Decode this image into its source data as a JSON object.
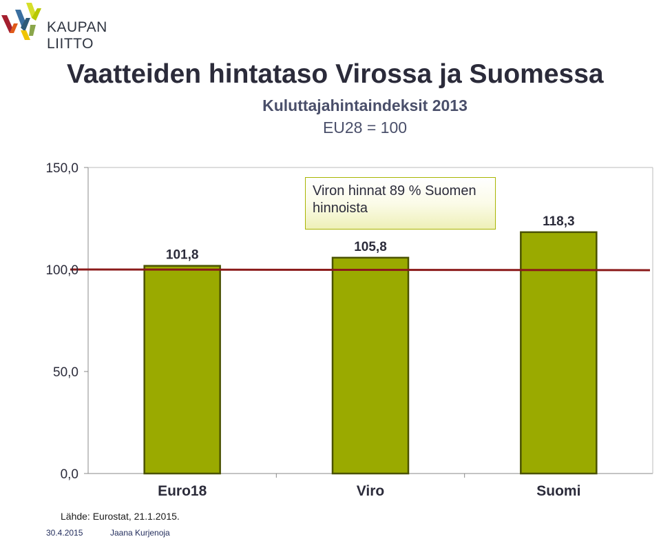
{
  "header": {
    "logo_text": "KAUPAN LIITTO"
  },
  "title": "Vaatteiden hintataso Virossa ja Suomessa",
  "subtitle": "Kuluttajahintaindeksit 2013",
  "subtitle2": "EU28 = 100",
  "annotation": "Viron hinnat 89 % Suomen hinnoista",
  "source": "Lähde: Eurostat, 21.1.2015.",
  "footer": {
    "date": "30.4.2015",
    "author": "Jaana Kurjenoja"
  },
  "colors": {
    "bar_fill": "#9aaa00",
    "bar_stroke": "#4a5200",
    "reference_line": "#8b1a1a",
    "axis": "#888888",
    "callout_border": "#a8b400"
  },
  "chart_data": {
    "type": "bar",
    "title": "Vaatteiden hintataso Virossa ja Suomessa",
    "subtitle": "Kuluttajahintaindeksit 2013",
    "categories": [
      "Euro18",
      "Viro",
      "Suomi"
    ],
    "values": [
      101.8,
      105.8,
      118.3
    ],
    "value_labels": [
      "101,8",
      "105,8",
      "118,3"
    ],
    "y_ticks": [
      0,
      50,
      100,
      150
    ],
    "y_tick_labels": [
      "0,0",
      "50,0",
      "100,0",
      "150,0"
    ],
    "ylim": [
      0,
      150
    ],
    "reference_line": 100,
    "grid": false,
    "legend": "none"
  }
}
